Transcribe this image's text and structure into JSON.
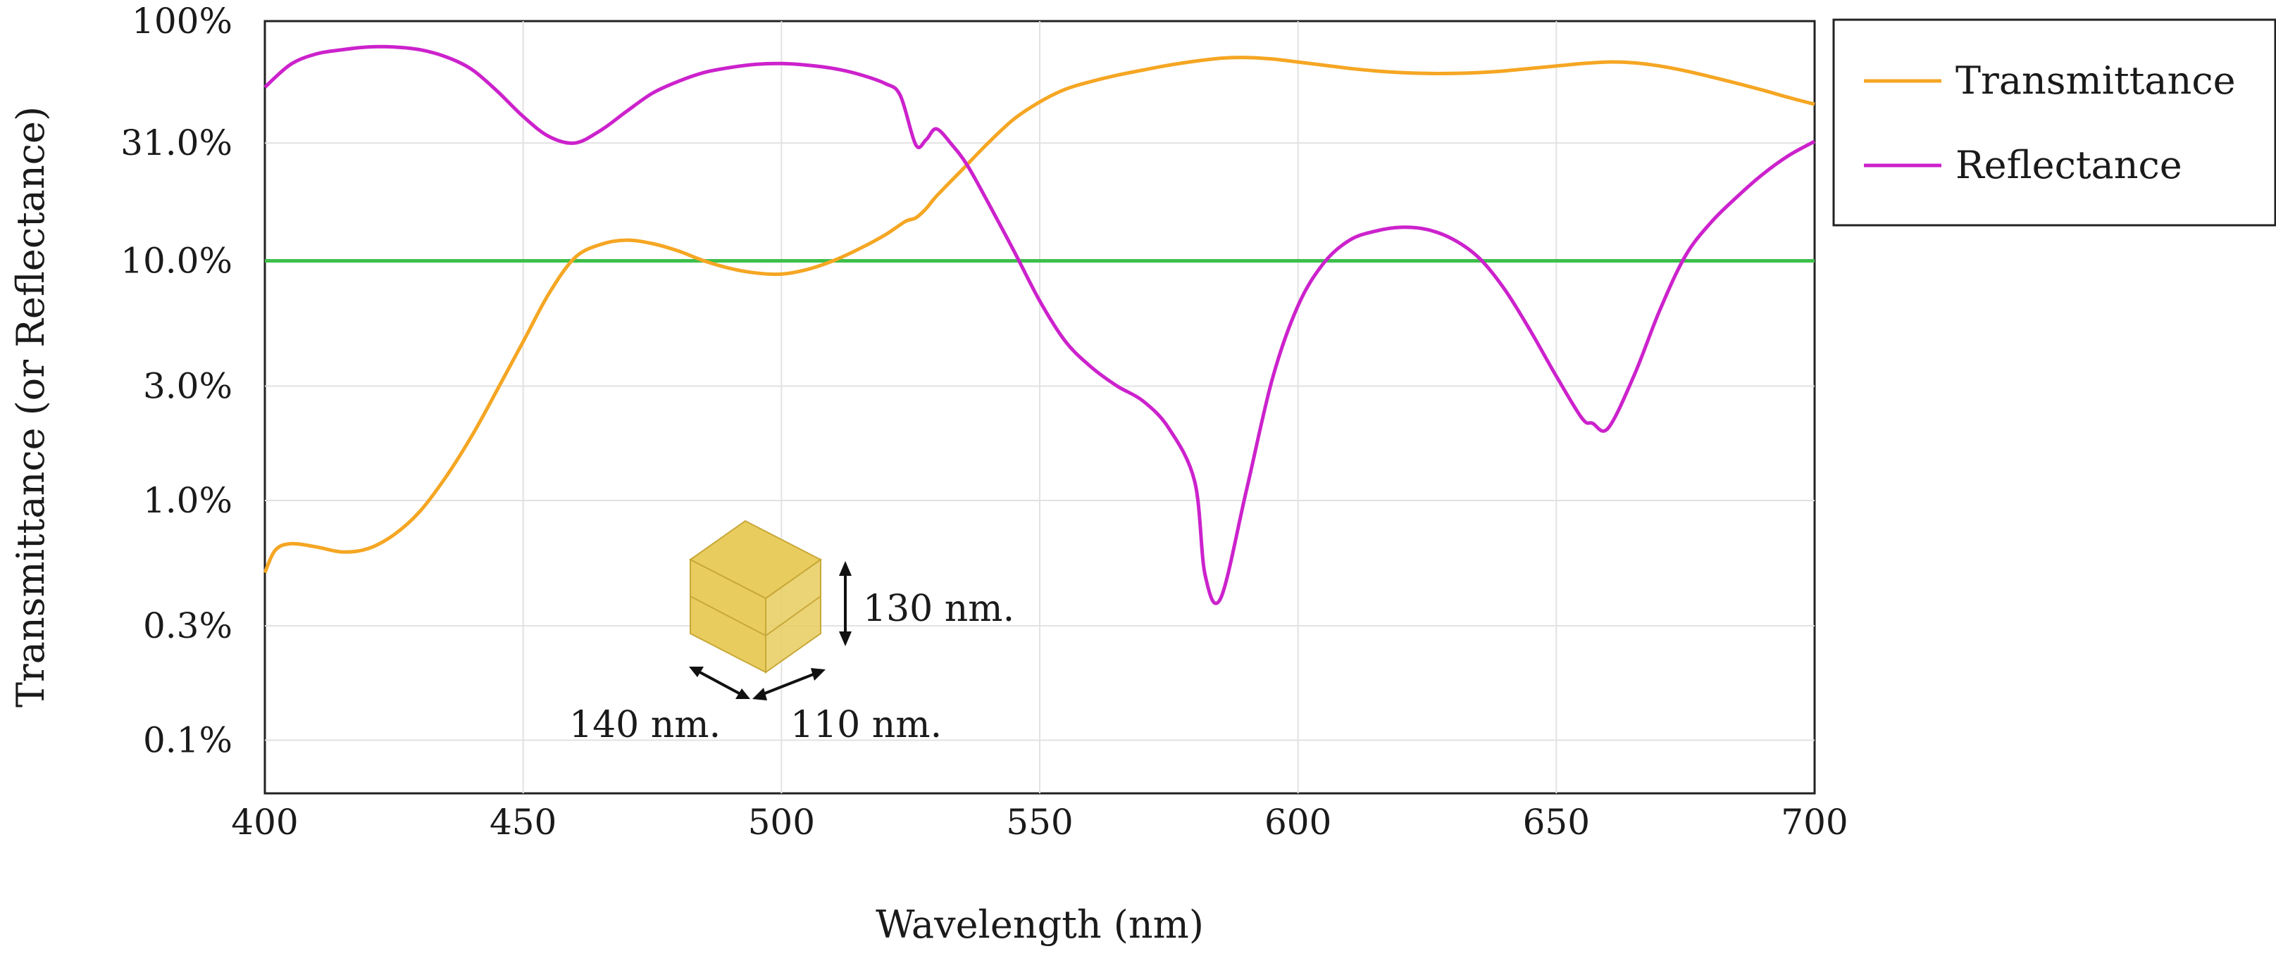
{
  "chart_data": {
    "type": "line",
    "title": "",
    "xlabel": "Wavelength (nm)",
    "ylabel": "Transmittance (or Reflectance)",
    "yscale": "log",
    "xlim": [
      400,
      700
    ],
    "ylim": [
      0.06,
      100
    ],
    "grid": true,
    "legend_position": "outside-top-right",
    "x_ticks": [
      400,
      450,
      500,
      550,
      600,
      650,
      700
    ],
    "x_tick_labels": [
      "400",
      "450",
      "500",
      "550",
      "600",
      "650",
      "700"
    ],
    "y_ticks": [
      100,
      31,
      10,
      3,
      1,
      0.3,
      0.1
    ],
    "y_tick_labels": [
      "100%",
      "31.0%",
      "10.0%",
      "3.0%",
      "1.0%",
      "0.3%",
      "0.1%"
    ],
    "threshold": {
      "value": 10,
      "color": "#3cbf4a"
    },
    "series": [
      {
        "name": "Transmittance",
        "color": "#f5a623",
        "x": [
          400,
          402,
          405,
          410,
          415,
          420,
          425,
          430,
          435,
          440,
          445,
          450,
          455,
          460,
          465,
          470,
          475,
          480,
          485,
          490,
          495,
          500,
          505,
          510,
          515,
          520,
          524,
          526,
          528,
          530,
          535,
          540,
          545,
          550,
          555,
          560,
          565,
          570,
          575,
          580,
          585,
          590,
          595,
          600,
          605,
          610,
          615,
          620,
          625,
          630,
          635,
          640,
          645,
          650,
          655,
          660,
          665,
          670,
          675,
          680,
          685,
          690,
          695,
          700
        ],
        "values": [
          0.5,
          0.62,
          0.66,
          0.64,
          0.61,
          0.63,
          0.72,
          0.9,
          1.25,
          1.85,
          2.9,
          4.6,
          7.3,
          10.3,
          11.7,
          12.2,
          11.8,
          11.0,
          10.0,
          9.3,
          8.9,
          8.8,
          9.2,
          10.0,
          11.2,
          12.8,
          14.6,
          15.1,
          16.5,
          18.6,
          24.0,
          31.0,
          39.0,
          46.0,
          52.0,
          56.0,
          59.5,
          62.5,
          65.5,
          68.0,
          70.0,
          70.5,
          69.5,
          67.5,
          65.5,
          63.5,
          62.0,
          61.0,
          60.5,
          60.5,
          61.0,
          62.0,
          63.5,
          65.0,
          66.5,
          67.5,
          67.0,
          65.0,
          62.0,
          58.5,
          55.0,
          51.5,
          48.0,
          45.0
        ]
      },
      {
        "name": "Reflectance",
        "color": "#cc22cc",
        "x": [
          400,
          405,
          410,
          415,
          420,
          425,
          430,
          435,
          440,
          445,
          450,
          455,
          460,
          465,
          470,
          475,
          480,
          485,
          490,
          495,
          500,
          505,
          510,
          515,
          520,
          523,
          526,
          528,
          530,
          533,
          536,
          540,
          545,
          550,
          555,
          560,
          565,
          570,
          575,
          580,
          582,
          585,
          590,
          595,
          600,
          605,
          610,
          615,
          620,
          625,
          630,
          635,
          640,
          645,
          650,
          655,
          657,
          660,
          665,
          670,
          675,
          680,
          685,
          690,
          695,
          700
        ],
        "values": [
          53,
          66,
          73,
          76,
          78,
          78,
          76,
          71,
          63,
          51,
          40,
          33,
          31,
          35,
          42,
          50,
          56,
          61,
          64,
          66,
          66.5,
          65.5,
          63.5,
          60,
          55,
          49,
          30.5,
          32,
          35.5,
          30.5,
          25,
          17.5,
          11,
          6.8,
          4.6,
          3.6,
          3.0,
          2.6,
          2.0,
          1.2,
          0.49,
          0.39,
          1.1,
          3.2,
          6.5,
          9.8,
          12.2,
          13.3,
          13.8,
          13.5,
          12.3,
          10.3,
          7.6,
          5.1,
          3.3,
          2.2,
          2.1,
          2.0,
          3.3,
          6.2,
          10.5,
          14.5,
          18.5,
          23.0,
          27.5,
          31.5
        ]
      }
    ],
    "legend": [
      "Transmittance",
      "Reflectance"
    ],
    "inset": {
      "height_label": "130 nm.",
      "length_label": "140 nm.",
      "width_label": "110 nm.",
      "color": "#e8cc5e"
    }
  }
}
